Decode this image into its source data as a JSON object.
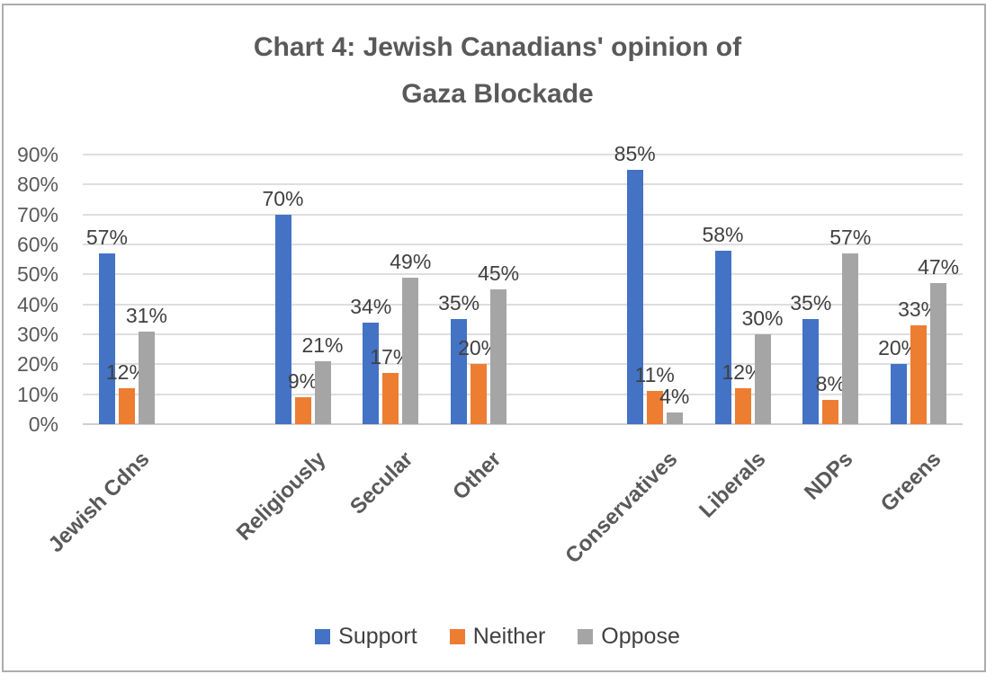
{
  "title_lines": [
    "Chart 4: Jewish Canadians' opinion of",
    "Gaza Blockade"
  ],
  "chart_data": {
    "type": "bar",
    "title": "Chart 4: Jewish Canadians' opinion of Gaza Blockade",
    "categories": [
      "Jewish Cdns",
      "Religiously",
      "Secular",
      "Other",
      "Conservatives",
      "Liberals",
      "NDPs",
      "Greens"
    ],
    "blank_slots_before": [
      1,
      4
    ],
    "series": [
      {
        "name": "Support",
        "color": "#4472C4",
        "values": [
          57,
          70,
          34,
          35,
          85,
          58,
          35,
          20
        ]
      },
      {
        "name": "Neither",
        "color": "#ED7D31",
        "values": [
          12,
          9,
          17,
          20,
          11,
          12,
          8,
          33
        ]
      },
      {
        "name": "Oppose",
        "color": "#A5A5A5",
        "values": [
          31,
          21,
          49,
          45,
          4,
          30,
          57,
          47
        ]
      }
    ],
    "data_labels_shown": true,
    "data_label_suffix": "%",
    "y_axis": {
      "min": 0,
      "max": 90,
      "step": 10,
      "tick_labels": [
        "0%",
        "10%",
        "20%",
        "30%",
        "40%",
        "50%",
        "60%",
        "70%",
        "80%",
        "90%"
      ]
    },
    "grid": true,
    "legend_position": "bottom",
    "legend_labels": [
      "Support",
      "Neither",
      "Oppose"
    ],
    "colors": {
      "gridline": "#dedede",
      "baseline": "#cfcfcf",
      "axis_text": "#595959",
      "title_text": "#595959",
      "data_label_text": "#404040",
      "frame_border": "#acacac"
    }
  }
}
